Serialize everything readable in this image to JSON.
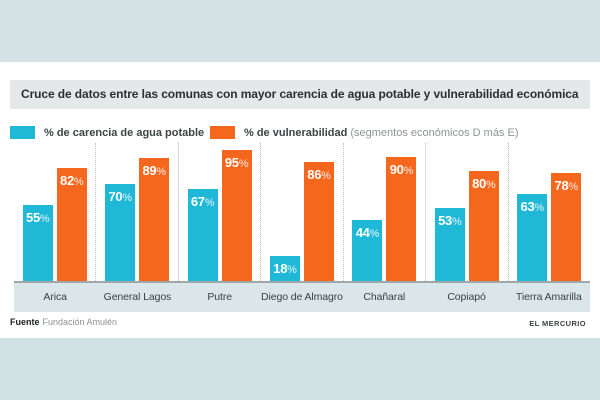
{
  "title": "Cruce de datos entre las comunas con mayor carencia de agua potable y vulnerabilidad económica",
  "legend": {
    "carencia": {
      "label": "% de carencia de agua potable",
      "color": "#1fb9d7"
    },
    "vulnerabilidad": {
      "label_bold": "% de vulnerabilidad",
      "label_note": "(segmentos económicos D más E)",
      "color": "#f4671d"
    }
  },
  "chart_data": {
    "type": "bar",
    "categories": [
      "Arica",
      "General Lagos",
      "Putre",
      "Diego de Almagro",
      "Chañaral",
      "Copiapó",
      "Tierra Amarilla"
    ],
    "series": [
      {
        "name": "% de carencia de agua potable",
        "color": "#1fb9d7",
        "values": [
          55,
          70,
          67,
          18,
          44,
          53,
          63
        ]
      },
      {
        "name": "% de vulnerabilidad (segmentos económicos D más E)",
        "color": "#f4671d",
        "values": [
          82,
          89,
          95,
          86,
          90,
          80,
          78
        ]
      }
    ],
    "value_suffix": "%",
    "ylim": [
      0,
      100
    ],
    "grid": false,
    "legend_position": "top",
    "value_labels": "inside-top",
    "group_separator": "dotted"
  },
  "footer": {
    "source_label": "Fuente",
    "source_value": "Fundación Amulén",
    "credit": "EL MERCURIO"
  }
}
